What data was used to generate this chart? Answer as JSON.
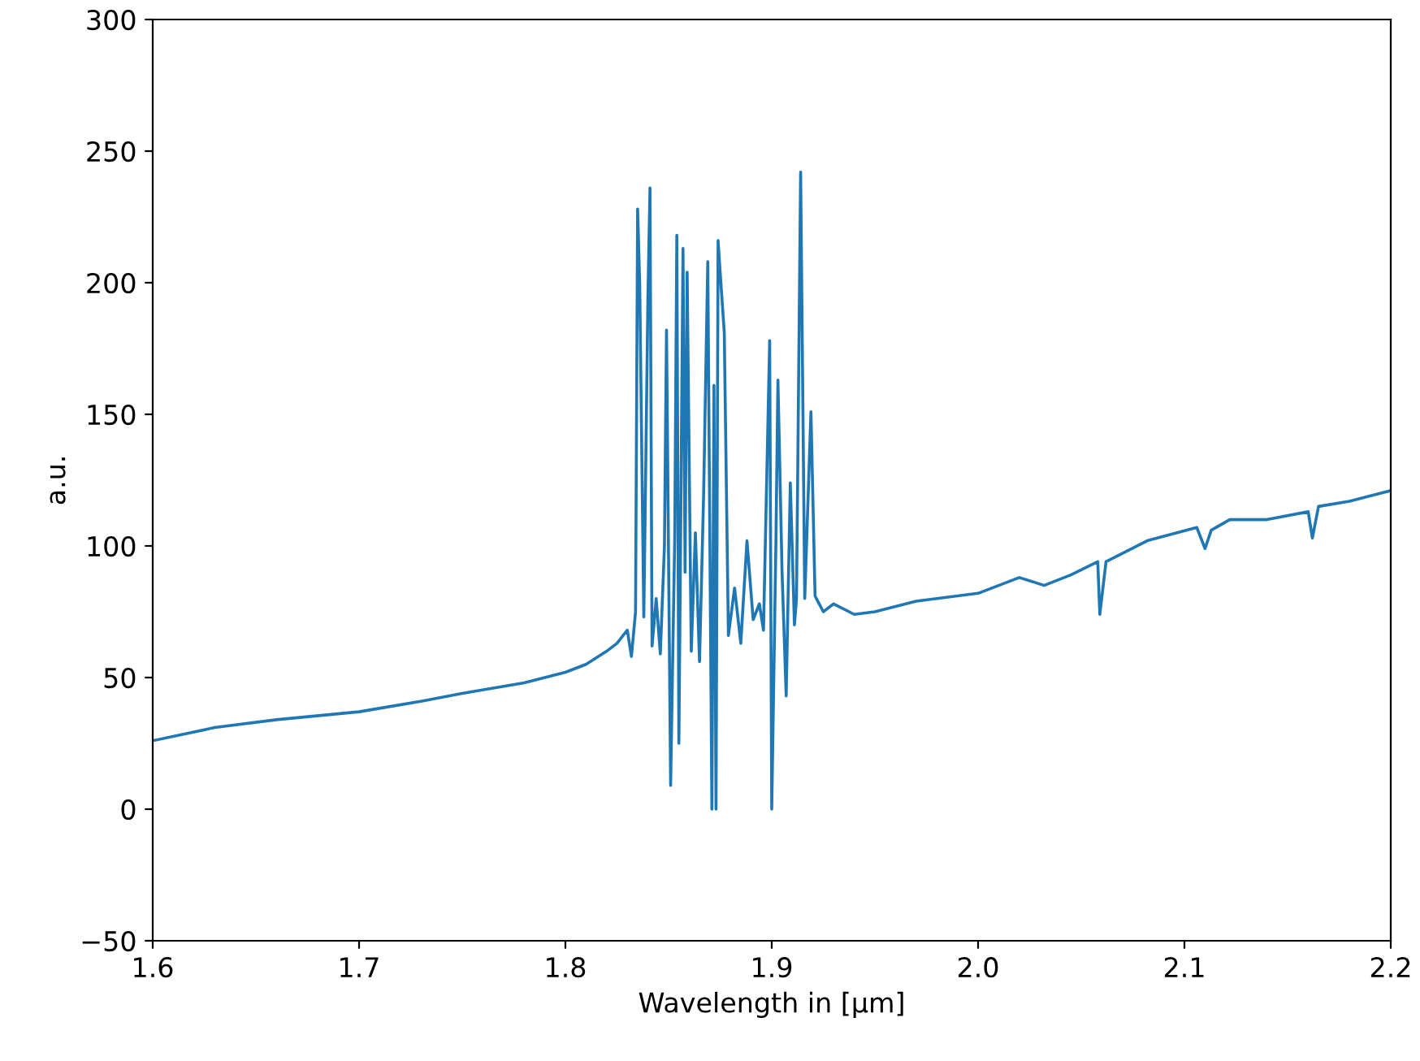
{
  "chart_data": {
    "type": "line",
    "xlabel": "Wavelength in [µm]",
    "ylabel": "a.u.",
    "x": [
      1.6,
      1.63,
      1.66,
      1.7,
      1.73,
      1.75,
      1.78,
      1.8,
      1.81,
      1.82,
      1.825,
      1.83,
      1.832,
      1.834,
      1.835,
      1.836,
      1.838,
      1.84,
      1.841,
      1.842,
      1.844,
      1.846,
      1.848,
      1.849,
      1.851,
      1.853,
      1.854,
      1.855,
      1.857,
      1.858,
      1.859,
      1.861,
      1.863,
      1.865,
      1.867,
      1.869,
      1.871,
      1.872,
      1.873,
      1.874,
      1.875,
      1.877,
      1.879,
      1.882,
      1.885,
      1.888,
      1.891,
      1.894,
      1.896,
      1.899,
      1.9,
      1.902,
      1.903,
      1.905,
      1.907,
      1.909,
      1.911,
      1.912,
      1.914,
      1.916,
      1.919,
      1.921,
      1.925,
      1.93,
      1.94,
      1.95,
      1.97,
      2.0,
      2.02,
      2.032,
      2.045,
      2.058,
      2.059,
      2.062,
      2.082,
      2.106,
      2.11,
      2.113,
      2.122,
      2.14,
      2.16,
      2.162,
      2.165,
      2.18,
      2.2
    ],
    "series": [
      {
        "color": "#1f77b4",
        "values": [
          26,
          31,
          34,
          37,
          41,
          44,
          48,
          52,
          55,
          60,
          63,
          68,
          58,
          75,
          228,
          200,
          73,
          195,
          236,
          62,
          80,
          59,
          100,
          182,
          9,
          104,
          218,
          25,
          213,
          90,
          204,
          60,
          105,
          56,
          120,
          208,
          0,
          161,
          0,
          216,
          204,
          181,
          66,
          84,
          63,
          102,
          72,
          78,
          68,
          178,
          0,
          100,
          163,
          90,
          43,
          124,
          70,
          80,
          242,
          80,
          151,
          81,
          75,
          78,
          74,
          75,
          79,
          82,
          88,
          85,
          89,
          94,
          74,
          94,
          102,
          107,
          99,
          106,
          110,
          110,
          113,
          103,
          115,
          117,
          121
        ]
      }
    ],
    "xlim": [
      1.6,
      2.2
    ],
    "ylim": [
      -50,
      300
    ],
    "xticks": [
      {
        "value": 1.6,
        "label": "1.6"
      },
      {
        "value": 1.7,
        "label": "1.7"
      },
      {
        "value": 1.8,
        "label": "1.8"
      },
      {
        "value": 1.9,
        "label": "1.9"
      },
      {
        "value": 2.0,
        "label": "2.0"
      },
      {
        "value": 2.1,
        "label": "2.1"
      },
      {
        "value": 2.2,
        "label": "2.2"
      }
    ],
    "yticks": [
      {
        "value": -50,
        "label": "−50"
      },
      0,
      50,
      100,
      150,
      200,
      250,
      300
    ],
    "grid": false,
    "legend": false
  }
}
